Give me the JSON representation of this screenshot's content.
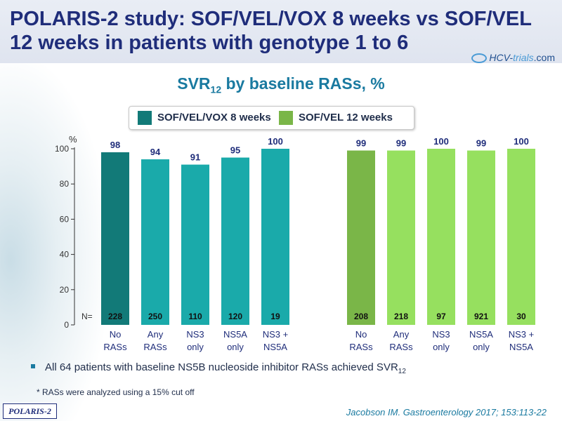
{
  "header": {
    "title_line1": "POLARIS-2 study: SOF/VEL/VOX 8 weeks vs SOF/VEL",
    "title_line2": "12 weeks in patients with genotype 1 to 6",
    "logo_hcv": "HCV-",
    "logo_trials": "trials",
    "logo_com": ".com"
  },
  "chart_title": {
    "main": "SVR",
    "sub": "12",
    "rest": " by baseline RASs, %"
  },
  "legend": [
    {
      "label": "SOF/VEL/VOX 8 weeks",
      "color": "#127a78"
    },
    {
      "label": "SOF/VEL 12 weeks",
      "color": "#7ab648"
    }
  ],
  "chart_data": {
    "type": "bar",
    "ylabel": "%",
    "ylim": [
      0,
      100
    ],
    "yticks": [
      0,
      20,
      40,
      60,
      80,
      100
    ],
    "n_label": "N=",
    "groups": [
      {
        "series": "SOF/VEL/VOX 8 weeks",
        "bars": [
          {
            "category": [
              "No",
              "RASs"
            ],
            "value": 98,
            "n": 228,
            "color": "#127a78"
          },
          {
            "category": [
              "Any",
              "RASs"
            ],
            "value": 94,
            "n": 250,
            "color": "#1aaaaa"
          },
          {
            "category": [
              "NS3",
              "only"
            ],
            "value": 91,
            "n": 110,
            "color": "#1aaaaa"
          },
          {
            "category": [
              "NS5A",
              "only"
            ],
            "value": 95,
            "n": 120,
            "color": "#1aaaaa"
          },
          {
            "category": [
              "NS3 +",
              "NS5A"
            ],
            "value": 100,
            "n": 19,
            "color": "#1aaaaa"
          }
        ]
      },
      {
        "series": "SOF/VEL 12 weeks",
        "bars": [
          {
            "category": [
              "No",
              "RASs"
            ],
            "value": 99,
            "n": 208,
            "color": "#7ab648"
          },
          {
            "category": [
              "Any",
              "RASs"
            ],
            "value": 99,
            "n": 218,
            "color": "#96e05f"
          },
          {
            "category": [
              "NS3",
              "only"
            ],
            "value": 100,
            "n": 97,
            "color": "#96e05f"
          },
          {
            "category": [
              "NS5A",
              "only"
            ],
            "value": 99,
            "n": 921,
            "color": "#96e05f"
          },
          {
            "category": [
              "NS3 +",
              "NS5A"
            ],
            "value": 100,
            "n": 30,
            "color": "#96e05f"
          }
        ]
      }
    ]
  },
  "bullet": {
    "text": "All 64 patients with baseline NS5B nucleoside inhibitor RASs achieved SVR",
    "sub": "12"
  },
  "footnote": "* RASs were analyzed using a 15% cut off",
  "tag": "POLARIS-2",
  "citation": "Jacobson IM. Gastroenterology 2017; 153:113-22",
  "colors": {
    "title": "#1f2d7a",
    "accent": "#1a7aa0",
    "value_label": "#1f2d7a"
  }
}
